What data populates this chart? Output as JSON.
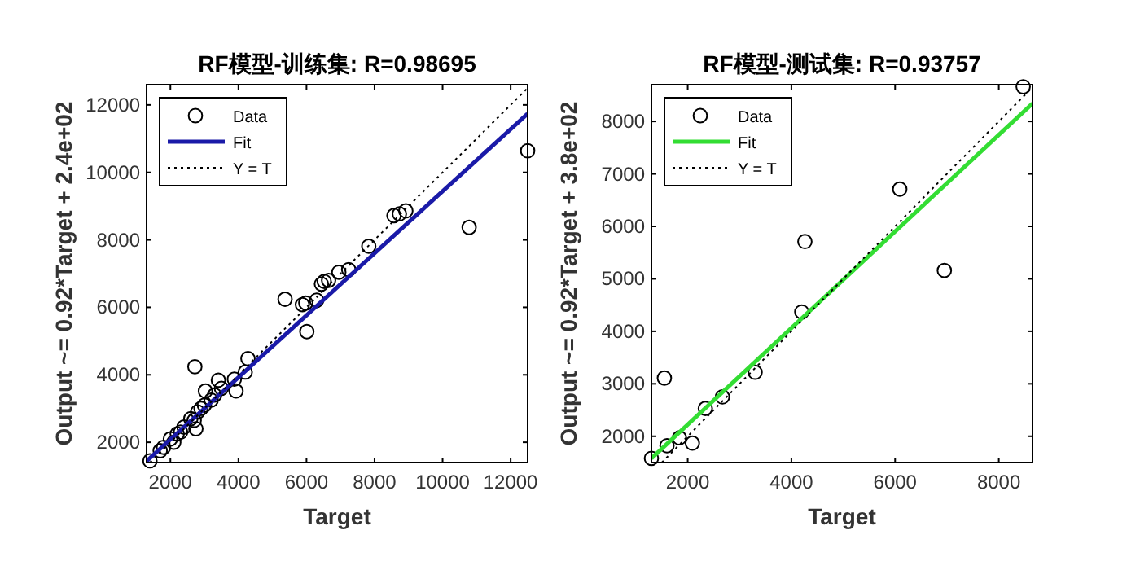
{
  "chart_data": [
    {
      "type": "scatter",
      "title": "RF模型-训练集: R=0.98695",
      "xlabel": "Target",
      "ylabel": "Output ~= 0.92*Target + 2.4e+02",
      "xlim": [
        1300,
        12500
      ],
      "ylim": [
        1400,
        12600
      ],
      "xticks": [
        2000,
        4000,
        6000,
        8000,
        10000,
        12000
      ],
      "yticks": [
        2000,
        4000,
        6000,
        8000,
        10000,
        12000
      ],
      "legend": "top left",
      "grid": false,
      "series": [
        {
          "name": "Data",
          "marker": "circle",
          "color": "#000000",
          "x": [
            12500,
            10780,
            7830,
            8570,
            8730,
            8920,
            7240,
            6950,
            6520,
            6650,
            6440,
            5370,
            5880,
            5980,
            6010,
            6300,
            2720,
            4280,
            4200,
            3880,
            3930,
            3410,
            3030,
            2750,
            1400,
            1700,
            1800,
            2000,
            2100,
            2200,
            2300,
            2400,
            2600,
            2700,
            2800,
            2900,
            3000,
            3200,
            3300,
            3500
          ],
          "values": [
            10640,
            8370,
            7810,
            8720,
            8770,
            8860,
            7120,
            7040,
            6770,
            6800,
            6690,
            6240,
            6080,
            6130,
            5280,
            6210,
            4240,
            4480,
            4080,
            3870,
            3520,
            3840,
            3520,
            2400,
            1450,
            1750,
            1850,
            2100,
            2000,
            2250,
            2300,
            2450,
            2700,
            2650,
            2900,
            3000,
            3100,
            3250,
            3400,
            3600
          ]
        },
        {
          "name": "Fit",
          "type": "line",
          "line_style": "solid",
          "marker": "none",
          "color": "#1a1aa8",
          "x": [
            1300,
            12500
          ],
          "values": [
            1440,
            11740
          ]
        },
        {
          "name": "Y = T",
          "type": "line",
          "line_style": "dotted",
          "marker": "none",
          "color": "#000000",
          "x": [
            1400,
            12500
          ],
          "values": [
            1400,
            12500
          ]
        }
      ]
    },
    {
      "type": "scatter",
      "title": "RF模型-测试集: R=0.93757",
      "xlabel": "Target",
      "ylabel": "Output ~= 0.92*Target + 3.8e+02",
      "xlim": [
        1300,
        8650
      ],
      "ylim": [
        1500,
        8700
      ],
      "xticks": [
        2000,
        4000,
        6000,
        8000
      ],
      "yticks": [
        2000,
        3000,
        4000,
        5000,
        6000,
        7000,
        8000
      ],
      "legend": "top left",
      "grid": false,
      "series": [
        {
          "name": "Data",
          "marker": "circle",
          "color": "#000000",
          "x": [
            1300,
            1550,
            1600,
            1840,
            2090,
            2340,
            2670,
            3300,
            4200,
            4260,
            6090,
            6950,
            8470
          ],
          "values": [
            1580,
            3110,
            1820,
            1970,
            1870,
            2530,
            2750,
            3220,
            4370,
            5710,
            6710,
            5160,
            8660
          ]
        },
        {
          "name": "Fit",
          "type": "line",
          "line_style": "solid",
          "marker": "none",
          "color": "#33dd33",
          "x": [
            1300,
            8650
          ],
          "values": [
            1580,
            8340
          ]
        },
        {
          "name": "Y = T",
          "type": "line",
          "line_style": "dotted",
          "marker": "none",
          "color": "#000000",
          "x": [
            1500,
            8650
          ],
          "values": [
            1500,
            8650
          ]
        }
      ]
    }
  ]
}
